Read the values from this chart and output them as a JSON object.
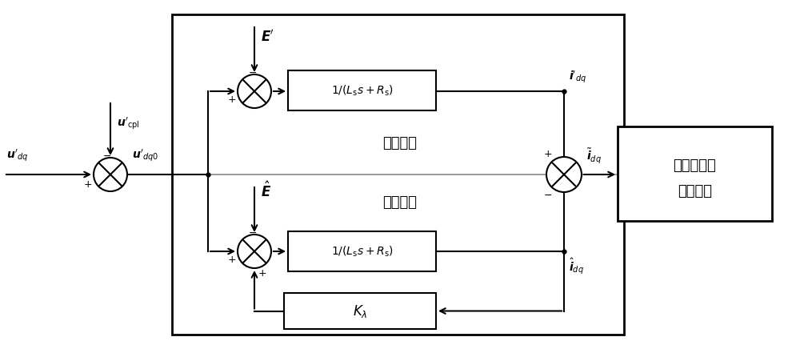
{
  "bg_color": "#ffffff",
  "ref_model_label": "参考模型",
  "adj_model_label": "可调模型",
  "adapt_line1": "位置和转速",
  "adapt_line2": "自适应率"
}
